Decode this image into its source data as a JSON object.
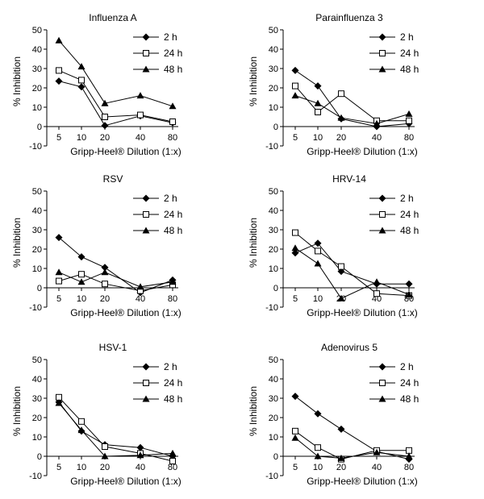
{
  "chart_data": [
    {
      "type": "line",
      "title": "Influenza A",
      "xlabel": "Gripp-Heel® Dilution (1:x)",
      "ylabel": "% Inhibition",
      "categories": [
        "5",
        "10",
        "20",
        "40",
        "80"
      ],
      "ylim": [
        -10,
        50
      ],
      "yticks": [
        "-10",
        "0",
        "10",
        "20",
        "30",
        "40",
        "50"
      ],
      "legend_position": "top-right",
      "series": [
        {
          "name": "2 h",
          "marker": "diamond",
          "values": [
            23.5,
            20.5,
            0.5,
            5.5,
            2
          ]
        },
        {
          "name": "24 h",
          "marker": "open-square",
          "values": [
            29,
            24,
            5,
            6,
            2.5
          ]
        },
        {
          "name": "48 h",
          "marker": "triangle",
          "values": [
            44.5,
            31,
            12,
            16,
            10.5
          ]
        }
      ]
    },
    {
      "type": "line",
      "title": "Parainfluenza 3",
      "xlabel": "Gripp-Heel® Dilution (1:x)",
      "ylabel": "% Inhibition",
      "categories": [
        "5",
        "10",
        "20",
        "40",
        "80"
      ],
      "ylim": [
        -10,
        50
      ],
      "yticks": [
        "-10",
        "0",
        "10",
        "20",
        "30",
        "40",
        "50"
      ],
      "legend_position": "top-right",
      "series": [
        {
          "name": "2 h",
          "marker": "diamond",
          "values": [
            29,
            21,
            4,
            0,
            1.5
          ]
        },
        {
          "name": "24 h",
          "marker": "open-square",
          "values": [
            21,
            7.5,
            17,
            3,
            3
          ]
        },
        {
          "name": "48 h",
          "marker": "triangle",
          "values": [
            16,
            12,
            4.5,
            1.5,
            6.5
          ]
        }
      ]
    },
    {
      "type": "line",
      "title": "RSV",
      "xlabel": "Gripp-Heel® Dilution (1:x)",
      "ylabel": "% Inhibition",
      "categories": [
        "5",
        "10",
        "20",
        "40",
        "80"
      ],
      "ylim": [
        -10,
        50
      ],
      "yticks": [
        "-10",
        "0",
        "10",
        "20",
        "30",
        "40",
        "50"
      ],
      "legend_position": "top-right",
      "series": [
        {
          "name": "2 h",
          "marker": "diamond",
          "values": [
            26,
            16,
            10.5,
            -2.5,
            4
          ]
        },
        {
          "name": "24 h",
          "marker": "open-square",
          "values": [
            3.5,
            7,
            2,
            -1.5,
            1.5
          ]
        },
        {
          "name": "48 h",
          "marker": "triangle",
          "values": [
            8,
            3,
            8,
            0.5,
            3
          ]
        }
      ]
    },
    {
      "type": "line",
      "title": "HRV-14",
      "xlabel": "Gripp-Heel® Dilution (1:x)",
      "ylabel": "% Inhibition",
      "categories": [
        "5",
        "10",
        "20",
        "40",
        "80"
      ],
      "ylim": [
        -10,
        50
      ],
      "yticks": [
        "-10",
        "0",
        "10",
        "20",
        "30",
        "40",
        "50"
      ],
      "legend_position": "top-right",
      "series": [
        {
          "name": "2 h",
          "marker": "diamond",
          "values": [
            18,
            23,
            8.5,
            2,
            2
          ]
        },
        {
          "name": "24 h",
          "marker": "open-square",
          "values": [
            28.5,
            19,
            11,
            -3,
            -4
          ]
        },
        {
          "name": "48 h",
          "marker": "triangle",
          "values": [
            20.5,
            12.5,
            -5.5,
            3,
            -3.5
          ]
        }
      ]
    },
    {
      "type": "line",
      "title": "HSV-1",
      "xlabel": "Gripp-Heel® Dilution (1:x)",
      "ylabel": "% Inhibition",
      "categories": [
        "5",
        "10",
        "20",
        "40",
        "80"
      ],
      "ylim": [
        -10,
        50
      ],
      "yticks": [
        "-10",
        "0",
        "10",
        "20",
        "30",
        "40",
        "50"
      ],
      "legend_position": "top-right",
      "series": [
        {
          "name": "2 h",
          "marker": "diamond",
          "values": [
            28,
            13,
            6,
            4.5,
            0
          ]
        },
        {
          "name": "24 h",
          "marker": "open-square",
          "values": [
            30.5,
            18,
            5,
            1.5,
            -2.5
          ]
        },
        {
          "name": "48 h",
          "marker": "triangle",
          "values": [
            27.5,
            13.5,
            0,
            0.5,
            1.5
          ]
        }
      ]
    },
    {
      "type": "line",
      "title": "Adenovirus 5",
      "xlabel": "Gripp-Heel® Dilution (1:x)",
      "ylabel": "% Inhibition",
      "categories": [
        "5",
        "10",
        "20",
        "40",
        "80"
      ],
      "ylim": [
        -10,
        50
      ],
      "yticks": [
        "-10",
        "0",
        "10",
        "20",
        "30",
        "40",
        "50"
      ],
      "legend_position": "top-right",
      "series": [
        {
          "name": "2 h",
          "marker": "diamond",
          "values": [
            31,
            22,
            14,
            2.5,
            -1.5
          ]
        },
        {
          "name": "24 h",
          "marker": "open-square",
          "values": [
            13,
            4.5,
            -1.5,
            3,
            3
          ]
        },
        {
          "name": "48 h",
          "marker": "triangle",
          "values": [
            9.5,
            0,
            -1,
            2,
            0
          ]
        }
      ]
    }
  ]
}
